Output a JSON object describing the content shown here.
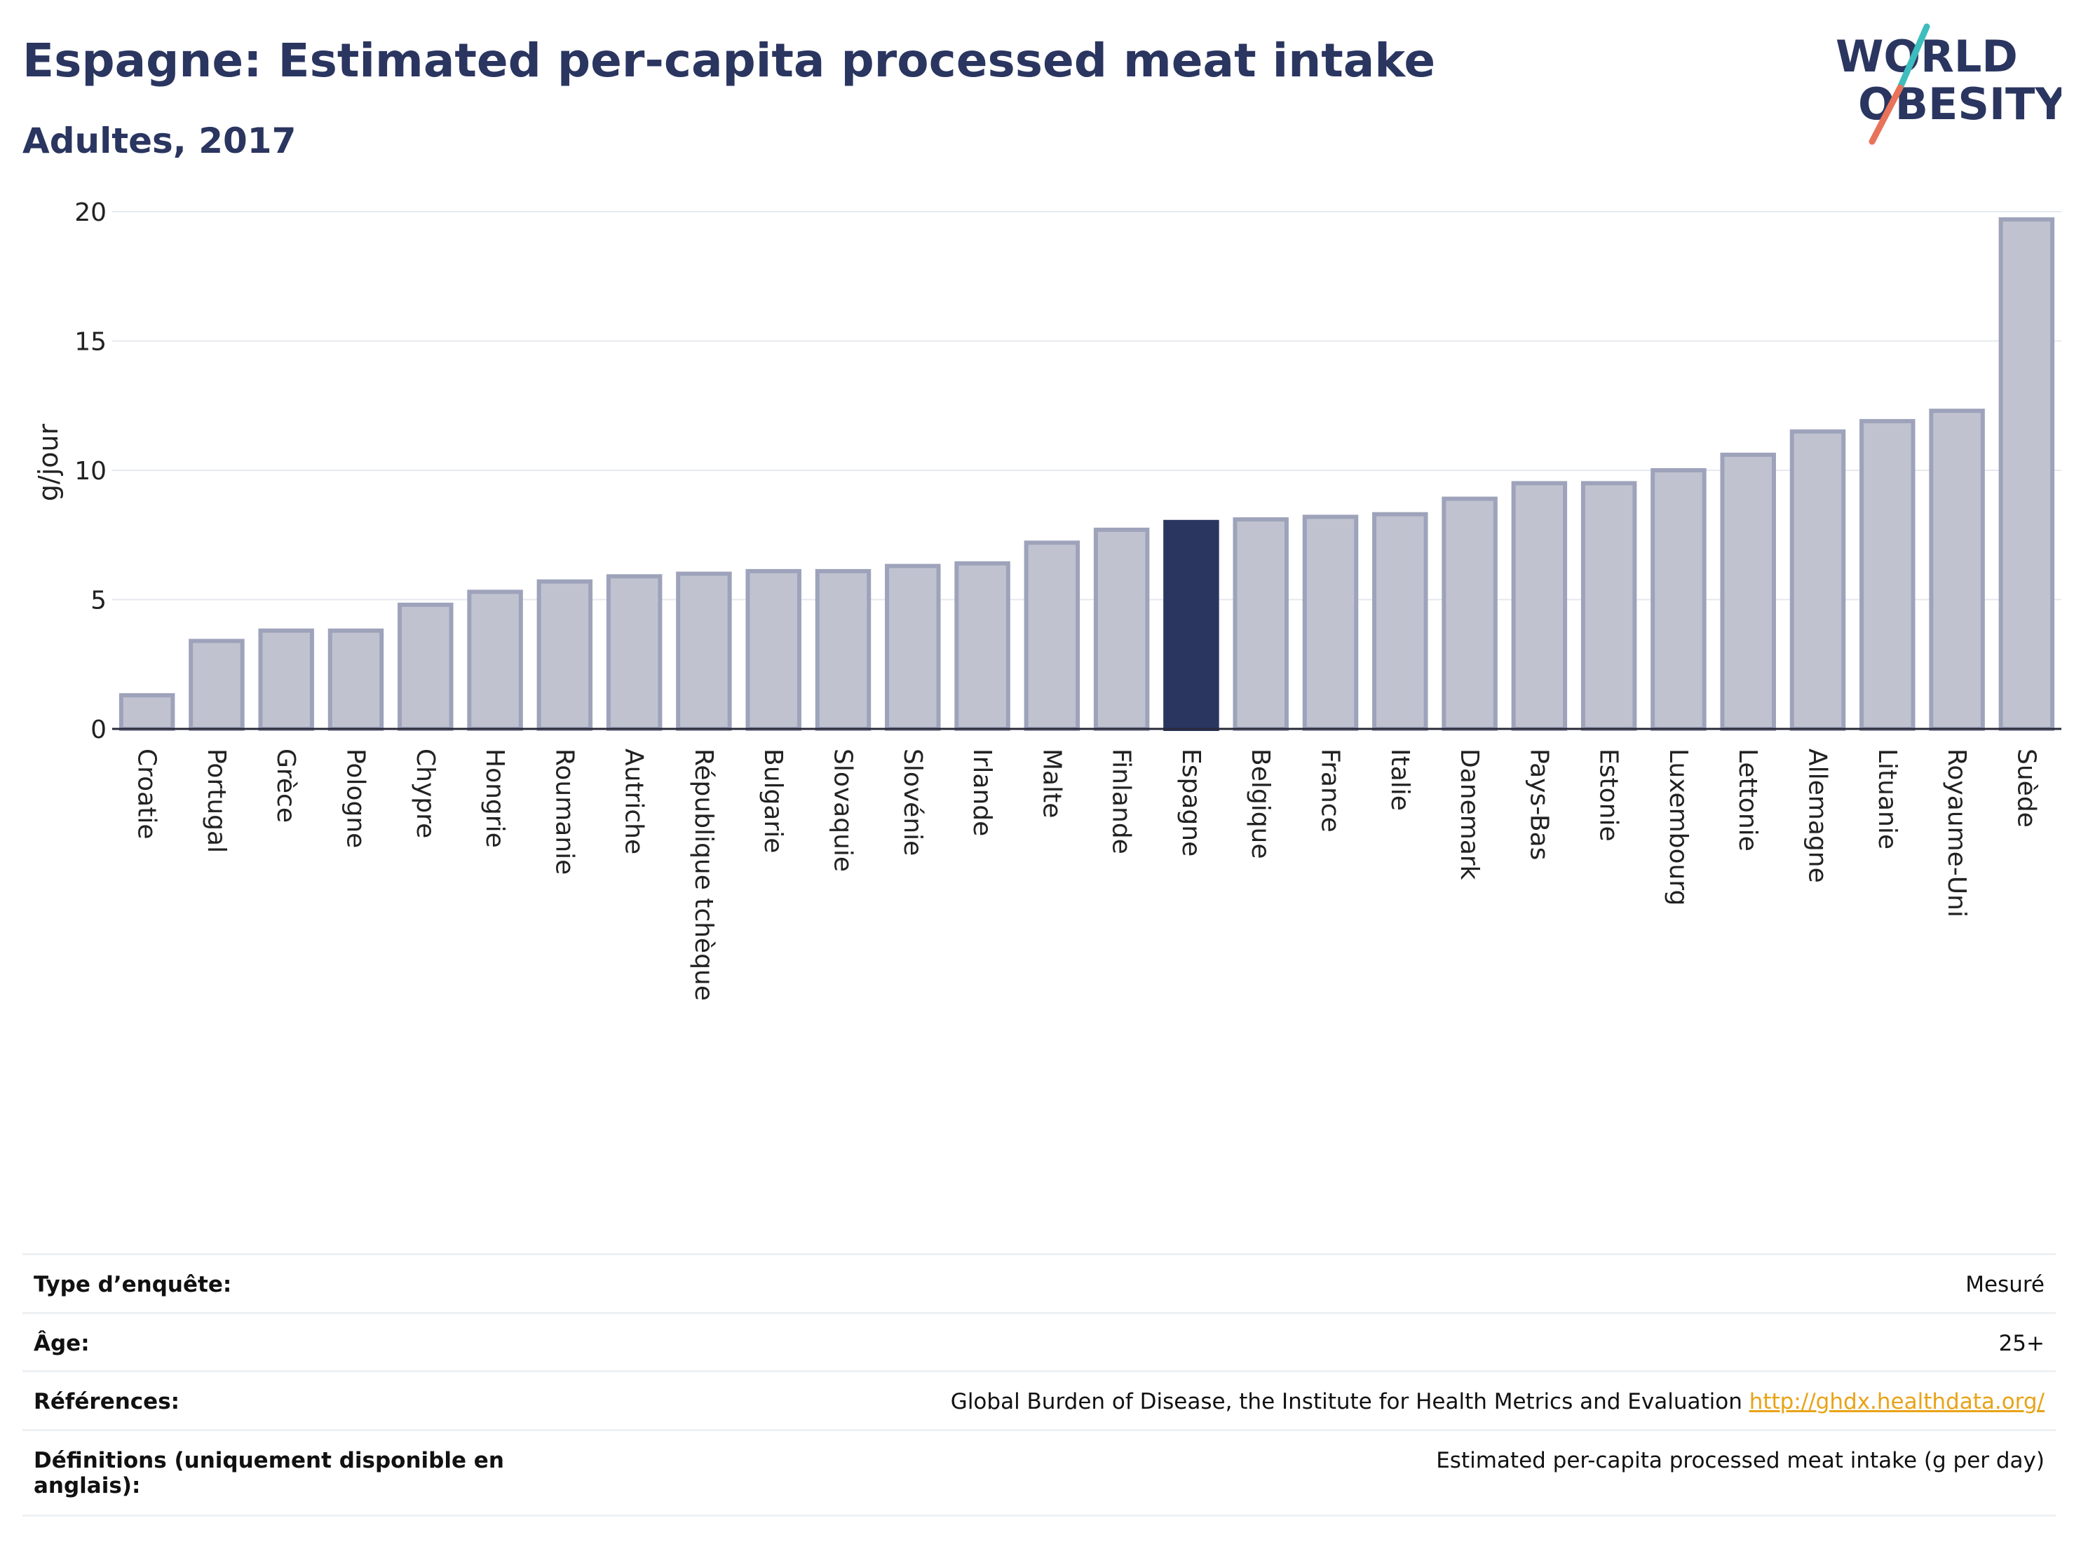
{
  "header": {
    "title": "Espagne: Estimated per-capita processed meat intake",
    "subtitle": "Adultes, 2017"
  },
  "logo": {
    "line1": "WORLD",
    "line2": "OBESITY"
  },
  "colors": {
    "highlight": "#2a3560",
    "bar_fill": "#c0c3cf",
    "bar_edge": "#9ea3bb",
    "logo_teal": "#3dbdbd",
    "logo_coral": "#e8735a",
    "link": "#e8a317"
  },
  "chart_data": {
    "type": "bar",
    "title": "Espagne: Estimated per-capita processed meat intake",
    "subtitle": "Adultes, 2017",
    "ylabel": "g/jour",
    "ylim": [
      0,
      20
    ],
    "yticks": [
      0,
      5,
      10,
      15,
      20
    ],
    "grid": true,
    "highlight": "Espagne",
    "categories": [
      "Croatie",
      "Portugal",
      "Grèce",
      "Pologne",
      "Chypre",
      "Hongrie",
      "Roumanie",
      "Autriche",
      "République tchèque",
      "Bulgarie",
      "Slovaquie",
      "Slovénie",
      "Irlande",
      "Malte",
      "Finlande",
      "Espagne",
      "Belgique",
      "France",
      "Italie",
      "Danemark",
      "Pays-Bas",
      "Estonie",
      "Luxembourg",
      "Lettonie",
      "Allemagne",
      "Lituanie",
      "Royaume-Uni",
      "Suède"
    ],
    "values": [
      1.3,
      3.4,
      3.8,
      3.8,
      4.8,
      5.3,
      5.7,
      5.9,
      6.0,
      6.1,
      6.1,
      6.3,
      6.4,
      7.2,
      7.7,
      8.0,
      8.1,
      8.2,
      8.3,
      8.9,
      9.5,
      9.5,
      10.0,
      10.6,
      11.5,
      11.9,
      12.3,
      19.7
    ]
  },
  "meta": [
    {
      "label": "Type d’enquête:",
      "value": "Mesuré"
    },
    {
      "label": "Âge:",
      "value": "25+"
    },
    {
      "label": "Références:",
      "value": "Global Burden of Disease, the Institute for Health Metrics and Evaluation",
      "link": "http://ghdx.healthdata.org/"
    },
    {
      "label": "Définitions (uniquement disponible en anglais):",
      "value": "Estimated per-capita processed meat intake (g per day)"
    }
  ]
}
